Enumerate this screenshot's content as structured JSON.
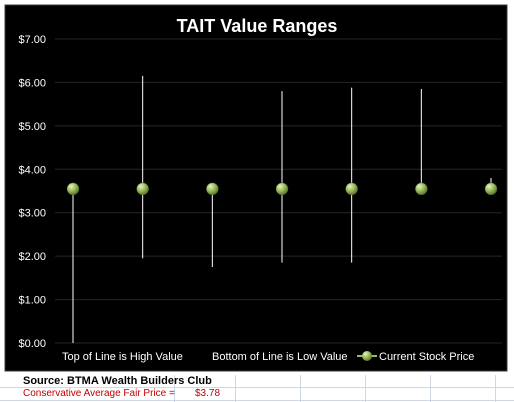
{
  "chart_data": {
    "type": "line",
    "title": "TAIT Value Ranges",
    "ylim": [
      0,
      7
    ],
    "yticks": [
      "$0.00",
      "$1.00",
      "$2.00",
      "$3.00",
      "$4.00",
      "$5.00",
      "$6.00",
      "$7.00"
    ],
    "ytick_values": [
      0,
      1,
      2,
      3,
      4,
      5,
      6,
      7
    ],
    "grid": true,
    "legend_position": "bottom",
    "series": [
      {
        "name": "Top of Line is High Value",
        "values": [
          3.55,
          6.15,
          3.55,
          5.8,
          5.88,
          5.85,
          3.8
        ]
      },
      {
        "name": "Bottom of Line is Low Value",
        "values": [
          0,
          1.95,
          1.75,
          1.85,
          1.85,
          3.55,
          3.55
        ]
      },
      {
        "name": "Current Stock Price",
        "values": [
          3.55,
          3.55,
          3.55,
          3.55,
          3.55,
          3.55,
          3.55
        ]
      }
    ],
    "colors": {
      "background": "#000000",
      "gridline": "#262626",
      "range_line": "#ffffff",
      "marker_fill": "#9bbb59",
      "marker_highlight": "#e6f2c8",
      "text": "#ffffff"
    }
  },
  "footer": {
    "source": "Source: BTMA Wealth Builders Club",
    "fair_price_label": "Conservative Average Fair Price =",
    "fair_price_value": "$3.78"
  }
}
